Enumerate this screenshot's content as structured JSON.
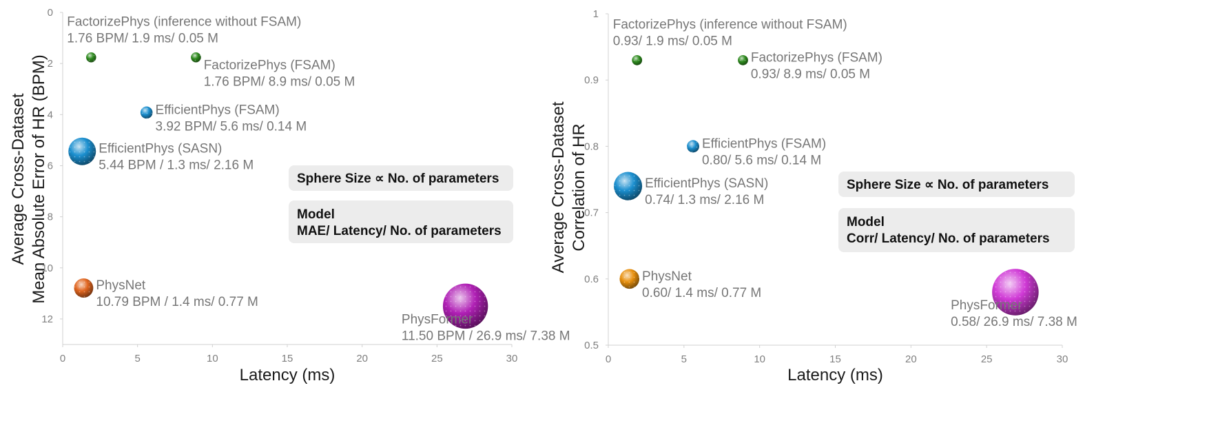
{
  "charts": [
    {
      "id": "mae",
      "type": "scatter",
      "xlabel": "Latency (ms)",
      "ylabel": [
        "Average Cross-Dataset",
        "Mean Absolute Error of HR (BPM)"
      ],
      "xlim": [
        0,
        30
      ],
      "ylim": [
        0,
        13
      ],
      "y_inverted": true,
      "xticks": [
        "0",
        "5",
        "10",
        "15",
        "20",
        "25",
        "30"
      ],
      "yticks": [
        "0",
        "2",
        "4",
        "6",
        "8",
        "10",
        "12"
      ],
      "notes": {
        "size": "Sphere Size ∝ No. of parameters",
        "model": "Model",
        "fields": "MAE/ Latency/ No. of parameters"
      },
      "points": [
        {
          "name": "FactorizePhys (inference without FSAM)",
          "x": 1.9,
          "y": 1.76,
          "params": 0.05,
          "color": "#2e8b1e",
          "label": "1.76 BPM/ 1.9 ms/ 0.05 M",
          "anchor": "above"
        },
        {
          "name": "FactorizePhys (FSAM)",
          "x": 8.9,
          "y": 1.76,
          "params": 0.05,
          "color": "#2e8b1e",
          "label": "1.76 BPM/ 8.9 ms/ 0.05 M",
          "anchor": "right-below"
        },
        {
          "name": "EfficientPhys (FSAM)",
          "x": 5.6,
          "y": 3.92,
          "params": 0.14,
          "color": "#1b8fcf",
          "label": "3.92 BPM/ 5.6 ms/ 0.14 M",
          "anchor": "right"
        },
        {
          "name": "EfficientPhys (SASN)",
          "x": 1.3,
          "y": 5.44,
          "params": 2.16,
          "color": "#1b8fcf",
          "label": "5.44 BPM / 1.3 ms/ 2.16 M",
          "anchor": "right"
        },
        {
          "name": "PhysNet",
          "x": 1.4,
          "y": 10.79,
          "params": 0.77,
          "color": "#e0651f",
          "label": "10.79 BPM / 1.4 ms/ 0.77 M",
          "anchor": "right"
        },
        {
          "name": "PhysFormer",
          "x": 26.9,
          "y": 11.5,
          "params": 7.38,
          "color": "#b020b5",
          "label": "11.50 BPM / 26.9 ms/ 7.38 M",
          "anchor": "below-left"
        }
      ]
    },
    {
      "id": "corr",
      "type": "scatter",
      "xlabel": "Latency (ms)",
      "ylabel": [
        "Average Cross-Dataset",
        "Correlation of HR"
      ],
      "xlim": [
        0,
        30
      ],
      "ylim": [
        0.5,
        1
      ],
      "y_inverted": false,
      "xticks": [
        "0",
        "5",
        "10",
        "15",
        "20",
        "25",
        "30"
      ],
      "yticks": [
        "0.5",
        "0.6",
        "0.7",
        "0.8",
        "0.9",
        "1"
      ],
      "notes": {
        "size": "Sphere Size ∝ No. of parameters",
        "model": "Model",
        "fields": "Corr/ Latency/ No. of parameters"
      },
      "points": [
        {
          "name": "FactorizePhys (inference without FSAM)",
          "x": 1.9,
          "y": 0.93,
          "params": 0.05,
          "color": "#2e8b1e",
          "label": "0.93/ 1.9 ms/ 0.05 M",
          "anchor": "above"
        },
        {
          "name": "FactorizePhys (FSAM)",
          "x": 8.9,
          "y": 0.93,
          "params": 0.05,
          "color": "#2e8b1e",
          "label": "0.93/ 8.9 ms/ 0.05 M",
          "anchor": "right"
        },
        {
          "name": "EfficientPhys (FSAM)",
          "x": 5.6,
          "y": 0.8,
          "params": 0.14,
          "color": "#1b8fcf",
          "label": "0.80/ 5.6 ms/ 0.14 M",
          "anchor": "right"
        },
        {
          "name": "EfficientPhys (SASN)",
          "x": 1.3,
          "y": 0.74,
          "params": 2.16,
          "color": "#1b8fcf",
          "label": "0.74/ 1.3 ms/ 2.16 M",
          "anchor": "right"
        },
        {
          "name": "PhysNet",
          "x": 1.4,
          "y": 0.6,
          "params": 0.77,
          "color": "#e8900e",
          "label": "0.60/ 1.4 ms/ 0.77 M",
          "anchor": "right"
        },
        {
          "name": "PhysFormer",
          "x": 26.9,
          "y": 0.58,
          "params": 7.38,
          "color": "#d03ad6",
          "label": "0.58/ 26.9 ms/ 7.38 M",
          "anchor": "below-left"
        }
      ]
    }
  ]
}
